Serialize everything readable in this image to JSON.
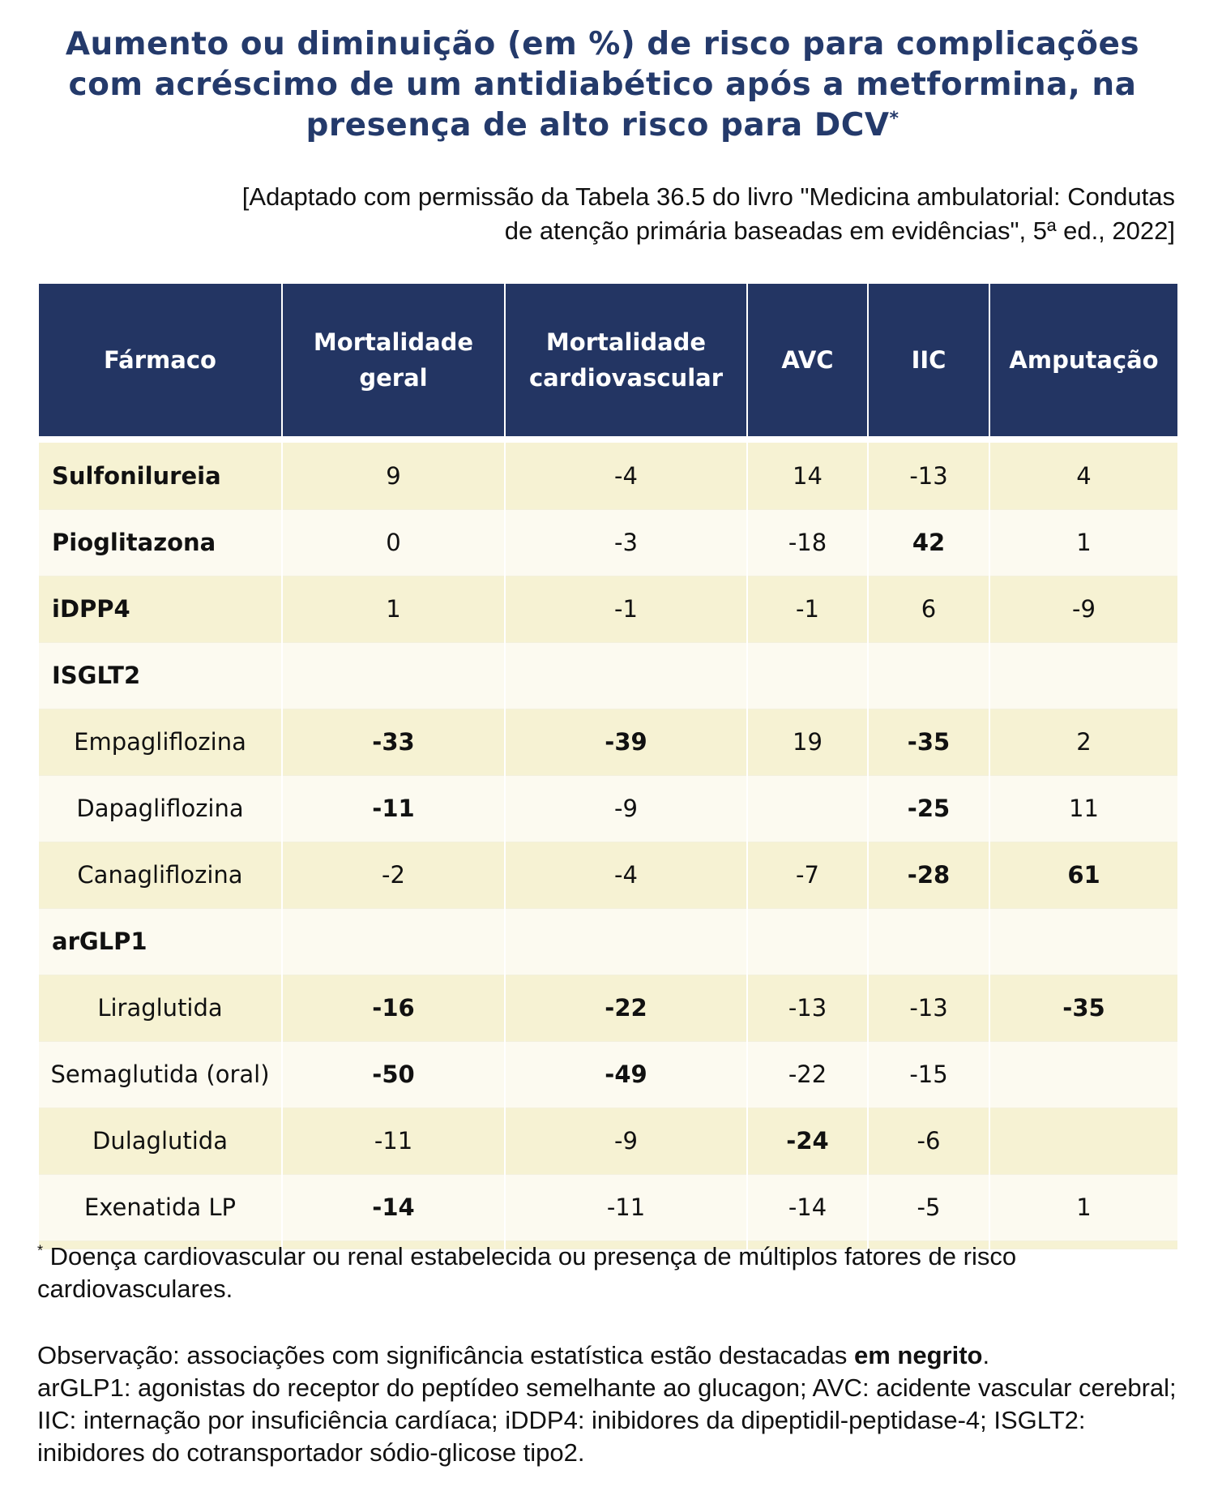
{
  "title": {
    "line1": "Aumento ou diminuição (em %) de risco para complicações",
    "line2": "com acréscimo de um antidiabético após a metformina, na",
    "line3": "presença de alto risco para DCV",
    "mark": "*"
  },
  "source": {
    "line1": "[Adaptado com permissão da Tabela 36.5 do livro \"Medicina ambulatorial: Condutas",
    "line2": "de atenção primária baseadas em evidências\", 5ª ed., 2022]"
  },
  "table": {
    "headers": [
      {
        "line1": "Fármaco",
        "line2": ""
      },
      {
        "line1": "Mortalidade",
        "line2": "geral"
      },
      {
        "line1": "Mortalidade",
        "line2": "cardiovascular"
      },
      {
        "line1": "AVC",
        "line2": ""
      },
      {
        "line1": "IIC",
        "line2": ""
      },
      {
        "line1": "Amputação",
        "line2": ""
      }
    ],
    "rows": [
      {
        "drug": "Sulfonilureia",
        "group": true,
        "values": [
          "9",
          "-4",
          "14",
          "-13",
          "4"
        ],
        "bold": [
          false,
          false,
          false,
          false,
          false
        ]
      },
      {
        "drug": "Pioglitazona",
        "group": true,
        "values": [
          "0",
          "-3",
          "-18",
          "42",
          "1"
        ],
        "bold": [
          false,
          false,
          false,
          true,
          false
        ]
      },
      {
        "drug": "iDPP4",
        "group": true,
        "values": [
          "1",
          "-1",
          "-1",
          "6",
          "-9"
        ],
        "bold": [
          false,
          false,
          false,
          false,
          false
        ]
      },
      {
        "drug": "ISGLT2",
        "group": true,
        "values": [
          "",
          "",
          "",
          "",
          ""
        ],
        "bold": [
          false,
          false,
          false,
          false,
          false
        ]
      },
      {
        "drug": "Empagliflozina",
        "group": false,
        "values": [
          "-33",
          "-39",
          "19",
          "-35",
          "2"
        ],
        "bold": [
          true,
          true,
          false,
          true,
          false
        ]
      },
      {
        "drug": "Dapagliflozina",
        "group": false,
        "values": [
          "-11",
          "-9",
          "",
          "-25",
          "11"
        ],
        "bold": [
          true,
          false,
          false,
          true,
          false
        ]
      },
      {
        "drug": "Canagliflozina",
        "group": false,
        "values": [
          "-2",
          "-4",
          "-7",
          "-28",
          "61"
        ],
        "bold": [
          false,
          false,
          false,
          true,
          true
        ]
      },
      {
        "drug": "arGLP1",
        "group": true,
        "values": [
          "",
          "",
          "",
          "",
          ""
        ],
        "bold": [
          false,
          false,
          false,
          false,
          false
        ]
      },
      {
        "drug": "Liraglutida",
        "group": false,
        "values": [
          "-16",
          "-22",
          "-13",
          "-13",
          "-35"
        ],
        "bold": [
          true,
          true,
          false,
          false,
          true
        ]
      },
      {
        "drug": "Semaglutida (oral)",
        "group": false,
        "values": [
          "-50",
          "-49",
          "-22",
          "-15",
          ""
        ],
        "bold": [
          true,
          true,
          false,
          false,
          false
        ]
      },
      {
        "drug": "Dulaglutida",
        "group": false,
        "values": [
          "-11",
          "-9",
          "-24",
          "-6",
          ""
        ],
        "bold": [
          false,
          false,
          true,
          false,
          false
        ]
      },
      {
        "drug": "Exenatida LP",
        "group": false,
        "values": [
          "-14",
          "-11",
          "-14",
          "-5",
          "1"
        ],
        "bold": [
          true,
          false,
          false,
          false,
          false
        ]
      }
    ]
  },
  "footnote": {
    "mark": "*",
    "text": " Doença cardiovascular ou renal estabelecida ou presença de múltiplos fatores de risco cardiovasculares."
  },
  "note": {
    "prefix": "Observação: associações com significância estatística estão destacadas ",
    "emphasis": "em negrito",
    "suffix": ".",
    "line2": "arGLP1: agonistas do receptor do peptídeo semelhante ao glucagon; AVC: acidente vascular cerebral; IIC: internação por insuficiência cardíaca; iDDP4: inibidores da dipeptidil-peptidase-4; ISGLT2: inibidores do cotransportador sódio-glicose tipo2."
  }
}
